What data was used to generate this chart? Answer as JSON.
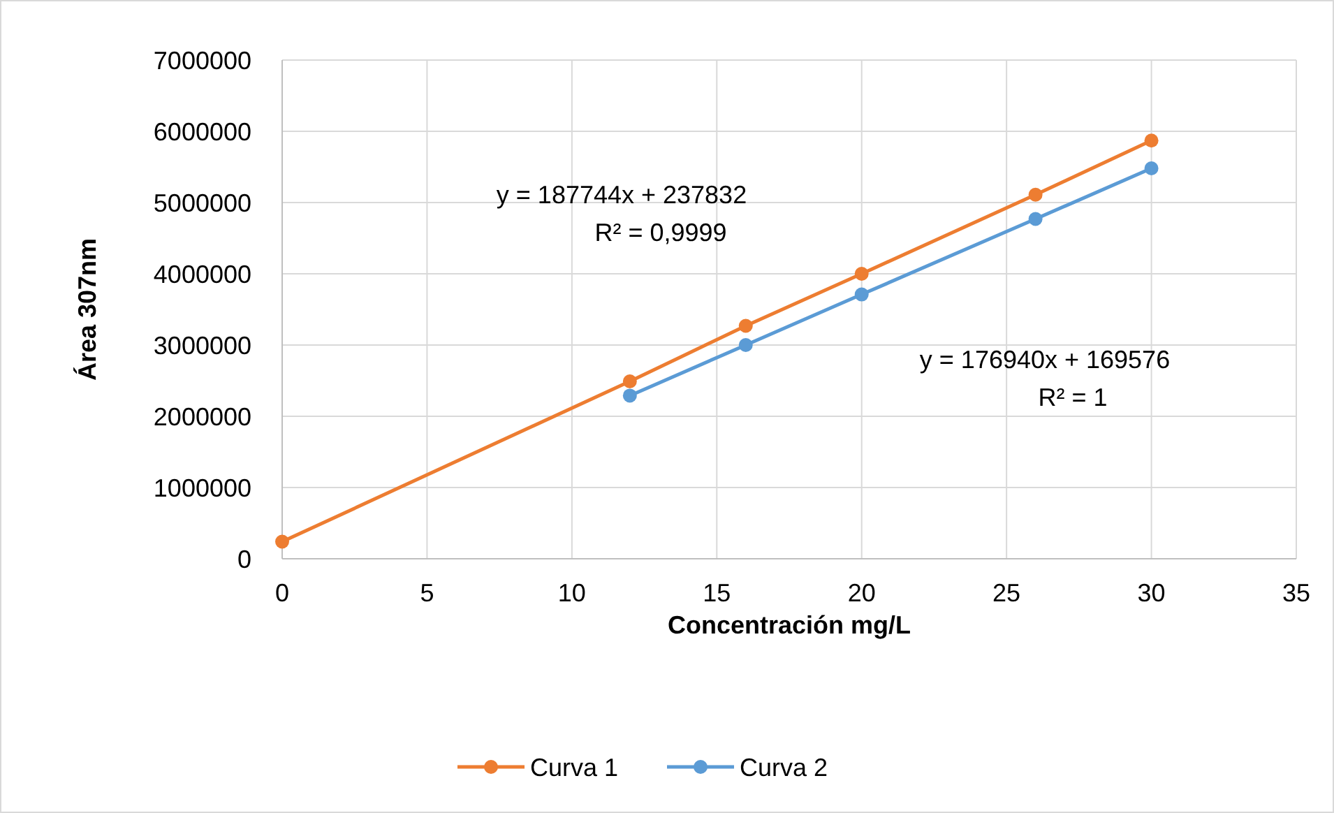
{
  "chart_data": {
    "type": "line",
    "xlabel": "Concentración mg/L",
    "ylabel": "Área  307nm",
    "xlim": [
      0,
      35
    ],
    "xticks": [
      0,
      5,
      10,
      15,
      20,
      25,
      30,
      35
    ],
    "ylim": [
      0,
      7000000
    ],
    "yticks": [
      0,
      1000000,
      2000000,
      3000000,
      4000000,
      5000000,
      6000000,
      7000000
    ],
    "series": [
      {
        "name": "Curva 1",
        "color": "#ed7d31",
        "x": [
          0,
          12,
          16,
          20,
          26,
          30
        ],
        "values": [
          240000,
          2490000,
          3270000,
          4000000,
          5110000,
          5870000
        ]
      },
      {
        "name": "Curva 2",
        "color": "#5b9bd5",
        "x": [
          12,
          16,
          20,
          26,
          30
        ],
        "values": [
          2290000,
          3000000,
          3710000,
          4770000,
          5480000
        ]
      }
    ],
    "annotations": [
      "y = 187744x + 237832",
      "R² = 0,9999",
      "y = 176940x + 169576",
      "R² = 1"
    ],
    "grid": true,
    "legend": "bottom",
    "marker": "circle",
    "line_style": "solid"
  }
}
